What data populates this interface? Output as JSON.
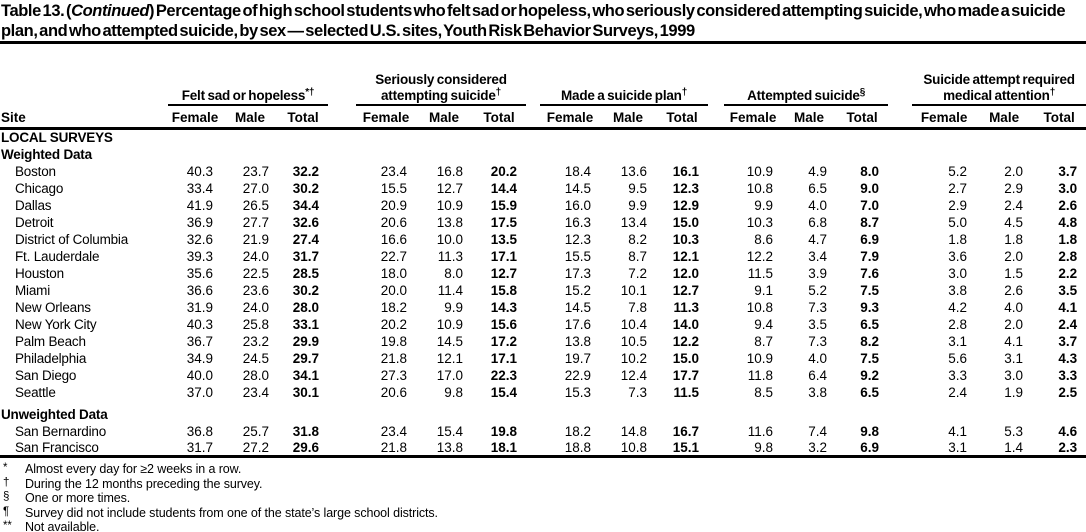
{
  "colors": {
    "text": "#000000",
    "background": "#ffffff"
  },
  "title": {
    "prefix": "Table 13. (",
    "continued": "Continued",
    "suffix": ") Percentage of high school students who felt sad or hopeless, who seriously considered attempting suicide, who made a suicide plan, and who attempted suicide, by sex — selected U.S. sites, Youth Risk Behavior Surveys, 1999"
  },
  "table": {
    "site_header": "Site",
    "sub_headers": [
      "Female",
      "Male",
      "Total"
    ],
    "groups": [
      {
        "label": "Felt sad or hopeless",
        "sup": "*†"
      },
      {
        "label": "Seriously considered attempting suicide",
        "sup": "†"
      },
      {
        "label": "Made a suicide plan",
        "sup": "†"
      },
      {
        "label": "Attempted suicide",
        "sup": "§"
      },
      {
        "label": "Suicide attempt required medical attention",
        "sup": "†"
      }
    ],
    "sections": [
      {
        "label": "LOCAL SURVEYS",
        "sublabel": "Weighted Data",
        "rows": [
          {
            "site": "Boston",
            "values": [
              "40.3",
              "23.7",
              "32.2",
              "23.4",
              "16.8",
              "20.2",
              "18.4",
              "13.6",
              "16.1",
              "10.9",
              "4.9",
              "8.0",
              "5.2",
              "2.0",
              "3.7"
            ]
          },
          {
            "site": "Chicago",
            "values": [
              "33.4",
              "27.0",
              "30.2",
              "15.5",
              "12.7",
              "14.4",
              "14.5",
              "9.5",
              "12.3",
              "10.8",
              "6.5",
              "9.0",
              "2.7",
              "2.9",
              "3.0"
            ]
          },
          {
            "site": "Dallas",
            "values": [
              "41.9",
              "26.5",
              "34.4",
              "20.9",
              "10.9",
              "15.9",
              "16.0",
              "9.9",
              "12.9",
              "9.9",
              "4.0",
              "7.0",
              "2.9",
              "2.4",
              "2.6"
            ]
          },
          {
            "site": "Detroit",
            "values": [
              "36.9",
              "27.7",
              "32.6",
              "20.6",
              "13.8",
              "17.5",
              "16.3",
              "13.4",
              "15.0",
              "10.3",
              "6.8",
              "8.7",
              "5.0",
              "4.5",
              "4.8"
            ]
          },
          {
            "site": "District of Columbia",
            "values": [
              "32.6",
              "21.9",
              "27.4",
              "16.6",
              "10.0",
              "13.5",
              "12.3",
              "8.2",
              "10.3",
              "8.6",
              "4.7",
              "6.9",
              "1.8",
              "1.8",
              "1.8"
            ]
          },
          {
            "site": "Ft. Lauderdale",
            "values": [
              "39.3",
              "24.0",
              "31.7",
              "22.7",
              "11.3",
              "17.1",
              "15.5",
              "8.7",
              "12.1",
              "12.2",
              "3.4",
              "7.9",
              "3.6",
              "2.0",
              "2.8"
            ]
          },
          {
            "site": "Houston",
            "values": [
              "35.6",
              "22.5",
              "28.5",
              "18.0",
              "8.0",
              "12.7",
              "17.3",
              "7.2",
              "12.0",
              "11.5",
              "3.9",
              "7.6",
              "3.0",
              "1.5",
              "2.2"
            ]
          },
          {
            "site": "Miami",
            "values": [
              "36.6",
              "23.6",
              "30.2",
              "20.0",
              "11.4",
              "15.8",
              "15.2",
              "10.1",
              "12.7",
              "9.1",
              "5.2",
              "7.5",
              "3.8",
              "2.6",
              "3.5"
            ]
          },
          {
            "site": "New Orleans",
            "values": [
              "31.9",
              "24.0",
              "28.0",
              "18.2",
              "9.9",
              "14.3",
              "14.5",
              "7.8",
              "11.3",
              "10.8",
              "7.3",
              "9.3",
              "4.2",
              "4.0",
              "4.1"
            ]
          },
          {
            "site": "New York City",
            "values": [
              "40.3",
              "25.8",
              "33.1",
              "20.2",
              "10.9",
              "15.6",
              "17.6",
              "10.4",
              "14.0",
              "9.4",
              "3.5",
              "6.5",
              "2.8",
              "2.0",
              "2.4"
            ]
          },
          {
            "site": "Palm Beach",
            "values": [
              "36.7",
              "23.2",
              "29.9",
              "19.8",
              "14.5",
              "17.2",
              "13.8",
              "10.5",
              "12.2",
              "8.7",
              "7.3",
              "8.2",
              "3.1",
              "4.1",
              "3.7"
            ]
          },
          {
            "site": "Philadelphia",
            "values": [
              "34.9",
              "24.5",
              "29.7",
              "21.8",
              "12.1",
              "17.1",
              "19.7",
              "10.2",
              "15.0",
              "10.9",
              "4.0",
              "7.5",
              "5.6",
              "3.1",
              "4.3"
            ]
          },
          {
            "site": "San Diego",
            "values": [
              "40.0",
              "28.0",
              "34.1",
              "27.3",
              "17.0",
              "22.3",
              "22.9",
              "12.4",
              "17.7",
              "11.8",
              "6.4",
              "9.2",
              "3.3",
              "3.0",
              "3.3"
            ]
          },
          {
            "site": "Seattle",
            "values": [
              "37.0",
              "23.4",
              "30.1",
              "20.6",
              "9.8",
              "15.4",
              "15.3",
              "7.3",
              "11.5",
              "8.5",
              "3.8",
              "6.5",
              "2.4",
              "1.9",
              "2.5"
            ]
          }
        ]
      },
      {
        "spacer": true,
        "sublabel": "Unweighted Data",
        "rows": [
          {
            "site": "San Bernardino",
            "values": [
              "36.8",
              "25.7",
              "31.8",
              "23.4",
              "15.4",
              "19.8",
              "18.2",
              "14.8",
              "16.7",
              "11.6",
              "7.4",
              "9.8",
              "4.1",
              "5.3",
              "4.6"
            ]
          },
          {
            "site": "San Francisco",
            "values": [
              "31.7",
              "27.2",
              "29.6",
              "21.8",
              "13.8",
              "18.1",
              "18.8",
              "10.8",
              "15.1",
              "9.8",
              "3.2",
              "6.9",
              "3.1",
              "1.4",
              "2.3"
            ]
          }
        ]
      }
    ]
  },
  "footnotes": [
    {
      "symbol": "*",
      "text": "Almost every day for ≥2 weeks in a row."
    },
    {
      "symbol": "†",
      "text": "During the 12 months preceding the survey."
    },
    {
      "symbol": "§",
      "text": "One or more times."
    },
    {
      "symbol": "¶",
      "text": "Survey did not include students from one of the state’s large school districts."
    },
    {
      "symbol": "**",
      "text": "Not available."
    }
  ]
}
